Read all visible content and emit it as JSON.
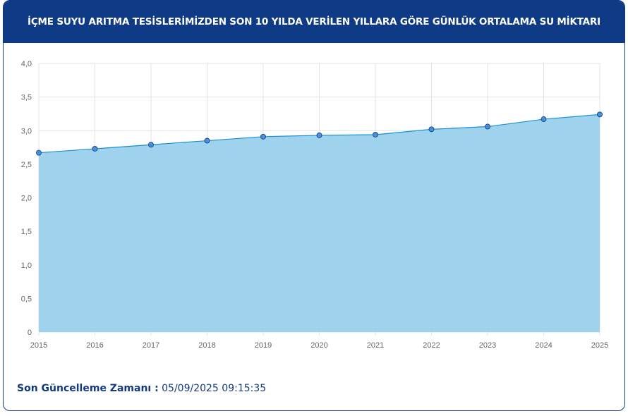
{
  "header": {
    "title": "İÇME SUYU ARITMA TESİSLERİMİZDEN SON 10 YILDA VERİLEN YILLARA GÖRE GÜNLÜK ORTALAMA SU MİKTARI"
  },
  "footer": {
    "label": "Son Güncelleme Zamanı :",
    "value": "05/09/2025 09:15:35"
  },
  "chart_data": {
    "type": "area",
    "categories": [
      "2015",
      "2016",
      "2017",
      "2018",
      "2019",
      "2020",
      "2021",
      "2022",
      "2023",
      "2024",
      "2025"
    ],
    "values": [
      2.67,
      2.73,
      2.79,
      2.85,
      2.91,
      2.93,
      2.94,
      3.02,
      3.06,
      3.17,
      3.24
    ],
    "ylim": [
      0,
      4
    ],
    "yticks": [
      "0",
      "0,5",
      "1,0",
      "1,5",
      "2,0",
      "2,5",
      "3,0",
      "3,5",
      "4,0"
    ],
    "grid": true,
    "colors": {
      "fill": "#9ad0ec",
      "line": "#1a8fd6",
      "marker": "#4a90d9",
      "header": "#0f3a85"
    }
  }
}
